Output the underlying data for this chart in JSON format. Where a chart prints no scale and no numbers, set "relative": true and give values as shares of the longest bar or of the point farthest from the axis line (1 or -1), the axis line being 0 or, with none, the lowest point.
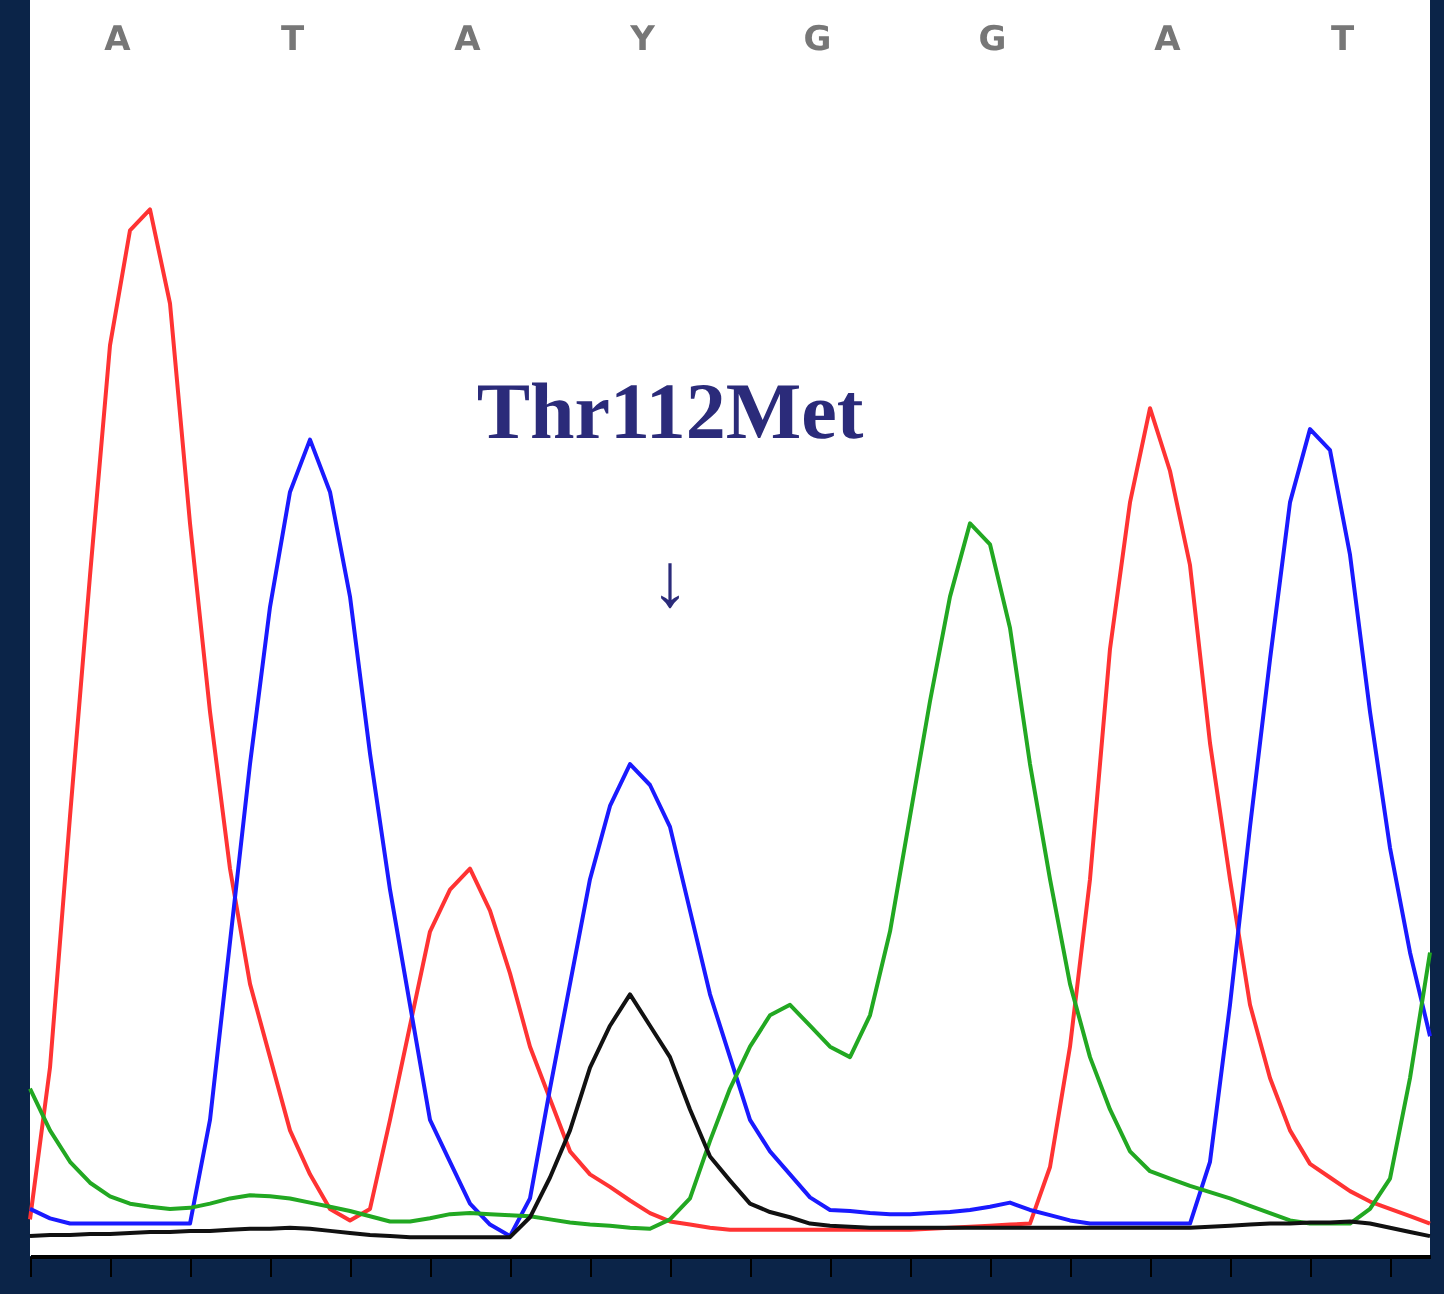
{
  "chart_data": {
    "type": "line",
    "relative": true,
    "grid": false,
    "marker": "none",
    "line_style": "solid",
    "categories": [
      null,
      null,
      null,
      null,
      null,
      null,
      null,
      null,
      null,
      null,
      null,
      null,
      null,
      null,
      null,
      null,
      null,
      null,
      null,
      null,
      null,
      null,
      null,
      null,
      null,
      null,
      null,
      null,
      null,
      null,
      null,
      null,
      null,
      null,
      null,
      null,
      null,
      null,
      null,
      null,
      null,
      null,
      null,
      null,
      null,
      null,
      null,
      null,
      null,
      null,
      null,
      null,
      null,
      null,
      null,
      null,
      null,
      null,
      null,
      null,
      null,
      null,
      null,
      null,
      null,
      null,
      null,
      null,
      null,
      null,
      null
    ],
    "annotations": [
      "A",
      "T",
      "A",
      "Y",
      "G",
      "G",
      "A",
      "T",
      "Thr112Met",
      "↓"
    ],
    "series": [
      {
        "color": "#ff3333",
        "values": [
          0.035,
          0.18,
          0.42,
          0.65,
          0.87,
          0.98,
          1.0,
          0.91,
          0.7,
          0.52,
          0.37,
          0.26,
          0.19,
          0.12,
          0.078,
          0.045,
          0.034,
          0.045,
          0.13,
          0.22,
          0.31,
          0.35,
          0.37,
          0.33,
          0.27,
          0.2,
          0.15,
          0.1,
          0.078,
          0.066,
          0.053,
          0.041,
          0.033,
          0.03,
          0.027,
          0.025,
          0.025,
          0.025,
          0.025,
          0.025,
          0.025,
          0.025,
          0.025,
          0.025,
          0.025,
          0.026,
          0.027,
          0.028,
          0.029,
          0.03,
          0.031,
          0.085,
          0.2,
          0.36,
          0.58,
          0.72,
          0.81,
          0.75,
          0.66,
          0.49,
          0.36,
          0.24,
          0.17,
          0.12,
          0.088,
          0.075,
          0.062,
          0.052,
          0.045,
          0.038,
          0.031
        ]
      },
      {
        "color": "#1a1aff",
        "values": [
          0.045,
          0.036,
          0.031,
          0.031,
          0.031,
          0.031,
          0.031,
          0.031,
          0.031,
          0.13,
          0.3,
          0.47,
          0.62,
          0.73,
          0.78,
          0.73,
          0.63,
          0.48,
          0.35,
          0.24,
          0.13,
          0.09,
          0.05,
          0.03,
          0.019,
          0.055,
          0.16,
          0.26,
          0.36,
          0.43,
          0.47,
          0.45,
          0.41,
          0.33,
          0.25,
          0.19,
          0.13,
          0.1,
          0.078,
          0.056,
          0.044,
          0.043,
          0.041,
          0.04,
          0.04,
          0.041,
          0.042,
          0.044,
          0.047,
          0.051,
          0.044,
          0.039,
          0.034,
          0.031,
          0.031,
          0.031,
          0.031,
          0.031,
          0.031,
          0.09,
          0.24,
          0.41,
          0.57,
          0.72,
          0.79,
          0.77,
          0.67,
          0.52,
          0.39,
          0.29,
          0.21
        ]
      },
      {
        "color": "#22a822",
        "values": [
          0.16,
          0.12,
          0.09,
          0.07,
          0.057,
          0.05,
          0.047,
          0.045,
          0.046,
          0.05,
          0.055,
          0.058,
          0.057,
          0.055,
          0.051,
          0.047,
          0.043,
          0.038,
          0.033,
          0.033,
          0.036,
          0.04,
          0.041,
          0.04,
          0.039,
          0.038,
          0.035,
          0.032,
          0.03,
          0.029,
          0.027,
          0.026,
          0.035,
          0.055,
          0.11,
          0.16,
          0.2,
          0.23,
          0.24,
          0.22,
          0.2,
          0.19,
          0.23,
          0.31,
          0.42,
          0.53,
          0.63,
          0.7,
          0.68,
          0.6,
          0.47,
          0.36,
          0.26,
          0.19,
          0.14,
          0.1,
          0.081,
          0.074,
          0.067,
          0.061,
          0.055,
          0.048,
          0.041,
          0.034,
          0.031,
          0.031,
          0.031,
          0.045,
          0.074,
          0.17,
          0.29
        ]
      },
      {
        "color": "#111111",
        "values": [
          0.019,
          0.02,
          0.02,
          0.021,
          0.021,
          0.022,
          0.023,
          0.023,
          0.024,
          0.024,
          0.025,
          0.026,
          0.026,
          0.027,
          0.026,
          0.024,
          0.022,
          0.02,
          0.019,
          0.018,
          0.018,
          0.018,
          0.018,
          0.018,
          0.018,
          0.037,
          0.075,
          0.12,
          0.18,
          0.22,
          0.25,
          0.22,
          0.19,
          0.14,
          0.095,
          0.072,
          0.05,
          0.042,
          0.037,
          0.031,
          0.029,
          0.028,
          0.027,
          0.027,
          0.027,
          0.027,
          0.027,
          0.027,
          0.027,
          0.027,
          0.027,
          0.027,
          0.027,
          0.027,
          0.027,
          0.027,
          0.027,
          0.027,
          0.027,
          0.028,
          0.029,
          0.03,
          0.031,
          0.031,
          0.032,
          0.032,
          0.033,
          0.031,
          0.027,
          0.023,
          0.019
        ]
      }
    ]
  }
}
